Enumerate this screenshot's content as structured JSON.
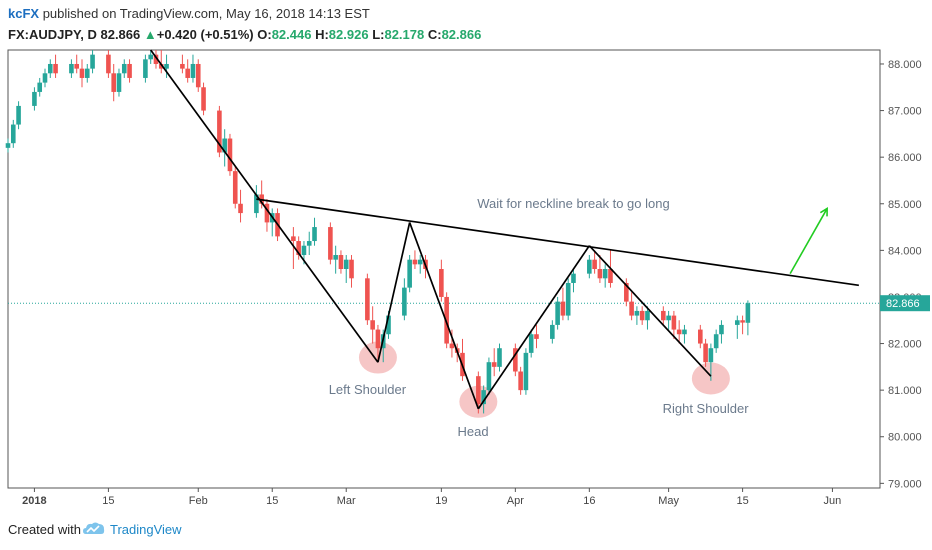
{
  "header": {
    "author": "kcFX",
    "published_text": "published on TradingView.com, May 16, 2018 14:13 EST",
    "symbol": "FX:AUDJPY, D",
    "last": "82.866",
    "change": "+0.420 (+0.51%)",
    "open_label": "O:",
    "open": "82.446",
    "high_label": "H:",
    "high": "82.926",
    "low_label": "L:",
    "low": "82.178",
    "close_label": "C:",
    "close": "82.866"
  },
  "colors": {
    "up": "#26a69a",
    "down": "#ef5350",
    "pattern_line": "#000000",
    "arrow": "#22cc22",
    "highlight": "#f0a0a0",
    "price_tag": "#26a69a"
  },
  "chart_data": {
    "type": "candlestick",
    "title": "",
    "xlabel": "",
    "ylabel": "",
    "ylim": [
      78.9,
      88.3
    ],
    "y_ticks": [
      "88.000",
      "87.000",
      "86.000",
      "85.000",
      "84.000",
      "83.000",
      "82.000",
      "81.000",
      "80.000",
      "79.000"
    ],
    "x_ticks": [
      "2018",
      "15",
      "Feb",
      "15",
      "Mar",
      "19",
      "Apr",
      "16",
      "May",
      "15",
      "Jun"
    ],
    "last_price": "82.866",
    "candles": [
      {
        "d": "2017-12-27",
        "o": 86.2,
        "h": 86.4,
        "l": 86.1,
        "c": 86.3
      },
      {
        "d": "2017-12-28",
        "o": 86.3,
        "h": 86.8,
        "l": 86.2,
        "c": 86.7
      },
      {
        "d": "2017-12-29",
        "o": 86.7,
        "h": 87.2,
        "l": 86.6,
        "c": 87.1
      },
      {
        "d": "2018-01-01",
        "o": 87.1,
        "h": 87.5,
        "l": 87.0,
        "c": 87.4
      },
      {
        "d": "2018-01-02",
        "o": 87.4,
        "h": 87.7,
        "l": 87.3,
        "c": 87.6
      },
      {
        "d": "2018-01-03",
        "o": 87.6,
        "h": 87.9,
        "l": 87.5,
        "c": 87.8
      },
      {
        "d": "2018-01-04",
        "o": 87.8,
        "h": 88.1,
        "l": 87.7,
        "c": 88.0
      },
      {
        "d": "2018-01-05",
        "o": 88.0,
        "h": 88.2,
        "l": 87.7,
        "c": 87.8
      },
      {
        "d": "2018-01-08",
        "o": 87.8,
        "h": 88.1,
        "l": 87.7,
        "c": 88.0
      },
      {
        "d": "2018-01-09",
        "o": 88.0,
        "h": 88.2,
        "l": 87.8,
        "c": 87.9
      },
      {
        "d": "2018-01-10",
        "o": 87.9,
        "h": 88.1,
        "l": 87.5,
        "c": 87.7
      },
      {
        "d": "2018-01-11",
        "o": 87.7,
        "h": 88.0,
        "l": 87.6,
        "c": 87.9
      },
      {
        "d": "2018-01-12",
        "o": 87.9,
        "h": 88.3,
        "l": 87.8,
        "c": 88.2
      },
      {
        "d": "2018-01-15",
        "o": 88.2,
        "h": 88.3,
        "l": 87.7,
        "c": 87.8
      },
      {
        "d": "2018-01-16",
        "o": 87.8,
        "h": 88.0,
        "l": 87.2,
        "c": 87.4
      },
      {
        "d": "2018-01-17",
        "o": 87.4,
        "h": 87.9,
        "l": 87.3,
        "c": 87.8
      },
      {
        "d": "2018-01-18",
        "o": 87.8,
        "h": 88.1,
        "l": 87.7,
        "c": 88.0
      },
      {
        "d": "2018-01-19",
        "o": 88.0,
        "h": 88.1,
        "l": 87.6,
        "c": 87.7
      },
      {
        "d": "2018-01-22",
        "o": 87.7,
        "h": 88.2,
        "l": 87.6,
        "c": 88.1
      },
      {
        "d": "2018-01-23",
        "o": 88.1,
        "h": 88.3,
        "l": 88.0,
        "c": 88.2
      },
      {
        "d": "2018-01-24",
        "o": 88.2,
        "h": 88.3,
        "l": 87.9,
        "c": 88.0
      },
      {
        "d": "2018-01-25",
        "o": 88.0,
        "h": 88.3,
        "l": 87.8,
        "c": 87.9
      },
      {
        "d": "2018-01-26",
        "o": 87.9,
        "h": 88.2,
        "l": 87.7,
        "c": 88.0
      },
      {
        "d": "2018-01-29",
        "o": 88.0,
        "h": 88.2,
        "l": 87.8,
        "c": 87.9
      },
      {
        "d": "2018-01-30",
        "o": 87.9,
        "h": 88.1,
        "l": 87.6,
        "c": 87.7
      },
      {
        "d": "2018-01-31",
        "o": 87.7,
        "h": 88.2,
        "l": 87.6,
        "c": 88.0
      },
      {
        "d": "2018-02-01",
        "o": 88.0,
        "h": 88.1,
        "l": 87.4,
        "c": 87.5
      },
      {
        "d": "2018-02-02",
        "o": 87.5,
        "h": 87.6,
        "l": 86.9,
        "c": 87.0
      },
      {
        "d": "2018-02-05",
        "o": 87.0,
        "h": 87.1,
        "l": 86.0,
        "c": 86.1
      },
      {
        "d": "2018-02-06",
        "o": 86.1,
        "h": 86.6,
        "l": 85.8,
        "c": 86.4
      },
      {
        "d": "2018-02-07",
        "o": 86.4,
        "h": 86.5,
        "l": 85.6,
        "c": 85.7
      },
      {
        "d": "2018-02-08",
        "o": 85.7,
        "h": 85.8,
        "l": 84.9,
        "c": 85.0
      },
      {
        "d": "2018-02-09",
        "o": 85.0,
        "h": 85.3,
        "l": 84.6,
        "c": 84.8
      },
      {
        "d": "2018-02-12",
        "o": 84.8,
        "h": 85.4,
        "l": 84.7,
        "c": 85.2
      },
      {
        "d": "2018-02-13",
        "o": 85.2,
        "h": 85.5,
        "l": 84.9,
        "c": 85.0
      },
      {
        "d": "2018-02-14",
        "o": 85.0,
        "h": 85.1,
        "l": 84.4,
        "c": 84.6
      },
      {
        "d": "2018-02-15",
        "o": 84.6,
        "h": 84.9,
        "l": 84.3,
        "c": 84.8
      },
      {
        "d": "2018-02-16",
        "o": 84.8,
        "h": 84.9,
        "l": 84.2,
        "c": 84.3
      },
      {
        "d": "2018-02-19",
        "o": 84.3,
        "h": 84.5,
        "l": 83.6,
        "c": 84.2
      },
      {
        "d": "2018-02-20",
        "o": 84.2,
        "h": 84.3,
        "l": 83.8,
        "c": 83.9
      },
      {
        "d": "2018-02-21",
        "o": 83.9,
        "h": 84.2,
        "l": 83.7,
        "c": 84.1
      },
      {
        "d": "2018-02-22",
        "o": 84.1,
        "h": 84.4,
        "l": 83.9,
        "c": 84.2
      },
      {
        "d": "2018-02-23",
        "o": 84.2,
        "h": 84.7,
        "l": 84.1,
        "c": 84.5
      },
      {
        "d": "2018-02-26",
        "o": 84.5,
        "h": 84.6,
        "l": 83.7,
        "c": 83.8
      },
      {
        "d": "2018-02-27",
        "o": 83.8,
        "h": 84.1,
        "l": 83.5,
        "c": 83.9
      },
      {
        "d": "2018-02-28",
        "o": 83.9,
        "h": 84.0,
        "l": 83.5,
        "c": 83.6
      },
      {
        "d": "2018-03-01",
        "o": 83.6,
        "h": 83.9,
        "l": 83.3,
        "c": 83.8
      },
      {
        "d": "2018-03-02",
        "o": 83.8,
        "h": 83.9,
        "l": 83.2,
        "c": 83.4
      },
      {
        "d": "2018-03-05",
        "o": 83.4,
        "h": 83.5,
        "l": 82.4,
        "c": 82.5
      },
      {
        "d": "2018-03-06",
        "o": 82.5,
        "h": 82.8,
        "l": 82.0,
        "c": 82.3
      },
      {
        "d": "2018-03-07",
        "o": 82.3,
        "h": 82.4,
        "l": 81.6,
        "c": 81.9
      },
      {
        "d": "2018-03-08",
        "o": 81.9,
        "h": 82.3,
        "l": 81.6,
        "c": 82.2
      },
      {
        "d": "2018-03-09",
        "o": 82.2,
        "h": 82.7,
        "l": 82.1,
        "c": 82.6
      },
      {
        "d": "2018-03-12",
        "o": 82.6,
        "h": 83.4,
        "l": 82.5,
        "c": 83.2
      },
      {
        "d": "2018-03-13",
        "o": 83.2,
        "h": 83.9,
        "l": 83.1,
        "c": 83.8
      },
      {
        "d": "2018-03-14",
        "o": 83.8,
        "h": 84.0,
        "l": 83.6,
        "c": 83.7
      },
      {
        "d": "2018-03-15",
        "o": 83.7,
        "h": 83.9,
        "l": 83.5,
        "c": 83.8
      },
      {
        "d": "2018-03-16",
        "o": 83.8,
        "h": 83.9,
        "l": 83.4,
        "c": 83.6
      },
      {
        "d": "2018-03-19",
        "o": 83.6,
        "h": 83.8,
        "l": 82.9,
        "c": 83.0
      },
      {
        "d": "2018-03-20",
        "o": 83.0,
        "h": 83.1,
        "l": 81.9,
        "c": 82.0
      },
      {
        "d": "2018-03-21",
        "o": 82.0,
        "h": 82.3,
        "l": 81.7,
        "c": 81.9
      },
      {
        "d": "2018-03-22",
        "o": 81.9,
        "h": 82.0,
        "l": 81.6,
        "c": 81.8
      },
      {
        "d": "2018-03-23",
        "o": 81.8,
        "h": 82.1,
        "l": 81.2,
        "c": 81.3
      },
      {
        "d": "2018-03-26",
        "o": 81.3,
        "h": 81.4,
        "l": 80.5,
        "c": 80.7
      },
      {
        "d": "2018-03-27",
        "o": 80.7,
        "h": 81.1,
        "l": 80.5,
        "c": 81.0
      },
      {
        "d": "2018-03-28",
        "o": 81.0,
        "h": 81.7,
        "l": 80.9,
        "c": 81.6
      },
      {
        "d": "2018-03-29",
        "o": 81.6,
        "h": 81.9,
        "l": 81.3,
        "c": 81.5
      },
      {
        "d": "2018-03-30",
        "o": 81.5,
        "h": 82.0,
        "l": 81.4,
        "c": 81.9
      },
      {
        "d": "2018-04-02",
        "o": 81.9,
        "h": 82.0,
        "l": 81.3,
        "c": 81.4
      },
      {
        "d": "2018-04-03",
        "o": 81.4,
        "h": 81.5,
        "l": 80.9,
        "c": 81.0
      },
      {
        "d": "2018-04-04",
        "o": 81.0,
        "h": 81.9,
        "l": 80.9,
        "c": 81.8
      },
      {
        "d": "2018-04-05",
        "o": 81.8,
        "h": 82.3,
        "l": 81.7,
        "c": 82.2
      },
      {
        "d": "2018-04-06",
        "o": 82.2,
        "h": 82.4,
        "l": 81.9,
        "c": 82.1
      },
      {
        "d": "2018-04-09",
        "o": 82.1,
        "h": 82.5,
        "l": 82.0,
        "c": 82.4
      },
      {
        "d": "2018-04-10",
        "o": 82.4,
        "h": 83.0,
        "l": 82.3,
        "c": 82.9
      },
      {
        "d": "2018-04-11",
        "o": 82.9,
        "h": 83.2,
        "l": 82.5,
        "c": 82.6
      },
      {
        "d": "2018-04-12",
        "o": 82.6,
        "h": 83.4,
        "l": 82.5,
        "c": 83.3
      },
      {
        "d": "2018-04-13",
        "o": 83.3,
        "h": 83.6,
        "l": 83.1,
        "c": 83.5
      },
      {
        "d": "2018-04-16",
        "o": 83.5,
        "h": 83.9,
        "l": 83.4,
        "c": 83.8
      },
      {
        "d": "2018-04-17",
        "o": 83.8,
        "h": 84.0,
        "l": 83.5,
        "c": 83.6
      },
      {
        "d": "2018-04-18",
        "o": 83.6,
        "h": 83.9,
        "l": 83.3,
        "c": 83.4
      },
      {
        "d": "2018-04-19",
        "o": 83.4,
        "h": 83.7,
        "l": 83.2,
        "c": 83.6
      },
      {
        "d": "2018-04-20",
        "o": 83.6,
        "h": 84.0,
        "l": 83.2,
        "c": 83.3
      },
      {
        "d": "2018-04-23",
        "o": 83.3,
        "h": 83.4,
        "l": 82.8,
        "c": 82.9
      },
      {
        "d": "2018-04-24",
        "o": 82.9,
        "h": 83.1,
        "l": 82.5,
        "c": 82.6
      },
      {
        "d": "2018-04-25",
        "o": 82.6,
        "h": 82.8,
        "l": 82.4,
        "c": 82.7
      },
      {
        "d": "2018-04-26",
        "o": 82.7,
        "h": 82.8,
        "l": 82.4,
        "c": 82.5
      },
      {
        "d": "2018-04-27",
        "o": 82.5,
        "h": 82.8,
        "l": 82.3,
        "c": 82.7
      },
      {
        "d": "2018-04-30",
        "o": 82.7,
        "h": 82.8,
        "l": 82.4,
        "c": 82.5
      },
      {
        "d": "2018-05-01",
        "o": 82.5,
        "h": 82.7,
        "l": 82.3,
        "c": 82.6
      },
      {
        "d": "2018-05-02",
        "o": 82.6,
        "h": 82.7,
        "l": 82.1,
        "c": 82.3
      },
      {
        "d": "2018-05-03",
        "o": 82.3,
        "h": 82.5,
        "l": 82.0,
        "c": 82.2
      },
      {
        "d": "2018-05-04",
        "o": 82.2,
        "h": 82.4,
        "l": 82.0,
        "c": 82.3
      },
      {
        "d": "2018-05-07",
        "o": 82.3,
        "h": 82.4,
        "l": 81.9,
        "c": 82.0
      },
      {
        "d": "2018-05-08",
        "o": 82.0,
        "h": 82.1,
        "l": 81.5,
        "c": 81.6
      },
      {
        "d": "2018-05-09",
        "o": 81.6,
        "h": 82.0,
        "l": 81.2,
        "c": 81.9
      },
      {
        "d": "2018-05-10",
        "o": 81.9,
        "h": 82.3,
        "l": 81.8,
        "c": 82.2
      },
      {
        "d": "2018-05-11",
        "o": 82.2,
        "h": 82.5,
        "l": 82.0,
        "c": 82.4
      },
      {
        "d": "2018-05-14",
        "o": 82.4,
        "h": 82.6,
        "l": 82.1,
        "c": 82.5
      },
      {
        "d": "2018-05-15",
        "o": 82.5,
        "h": 82.6,
        "l": 82.2,
        "c": 82.45
      },
      {
        "d": "2018-05-16",
        "o": 82.446,
        "h": 82.926,
        "l": 82.178,
        "c": 82.866
      }
    ],
    "pattern_lines": [
      {
        "name": "downtrend",
        "points": [
          [
            "2018-01-23",
            88.3
          ],
          [
            "2018-03-07",
            81.6
          ]
        ]
      },
      {
        "name": "left-shoulder-rise",
        "points": [
          [
            "2018-03-07",
            81.6
          ],
          [
            "2018-03-13",
            84.6
          ]
        ]
      },
      {
        "name": "head-drop",
        "points": [
          [
            "2018-03-13",
            84.6
          ],
          [
            "2018-03-26",
            80.6
          ]
        ]
      },
      {
        "name": "head-rise",
        "points": [
          [
            "2018-03-26",
            80.6
          ],
          [
            "2018-04-16",
            84.1
          ]
        ]
      },
      {
        "name": "right-shoulder-drop",
        "points": [
          [
            "2018-04-16",
            84.1
          ],
          [
            "2018-05-09",
            81.3
          ]
        ]
      },
      {
        "name": "neckline",
        "points": [
          [
            "2018-02-12",
            85.1
          ],
          [
            "2018-06-06",
            83.25
          ]
        ]
      },
      {
        "name": "breakout-arrow",
        "points": [
          [
            "2018-05-24",
            83.5
          ],
          [
            "2018-05-31",
            84.9
          ]
        ]
      }
    ],
    "annotations": [
      {
        "text": "Wait for neckline break to go long",
        "x": "2018-04-13",
        "y": 85.0
      },
      {
        "text": "Left Shoulder",
        "x": "2018-03-05",
        "y": 81.0
      },
      {
        "text": "Head",
        "x": "2018-03-25",
        "y": 80.1
      },
      {
        "text": "Right Shoulder",
        "x": "2018-05-08",
        "y": 80.6
      }
    ],
    "highlights": [
      {
        "name": "left-shoulder-highlight",
        "x": "2018-03-07",
        "y": 81.7
      },
      {
        "name": "head-highlight",
        "x": "2018-03-26",
        "y": 80.75
      },
      {
        "name": "right-shoulder-highlight",
        "x": "2018-05-09",
        "y": 81.25
      }
    ]
  },
  "footer": {
    "created_with": "Created with",
    "brand": "TradingView"
  }
}
